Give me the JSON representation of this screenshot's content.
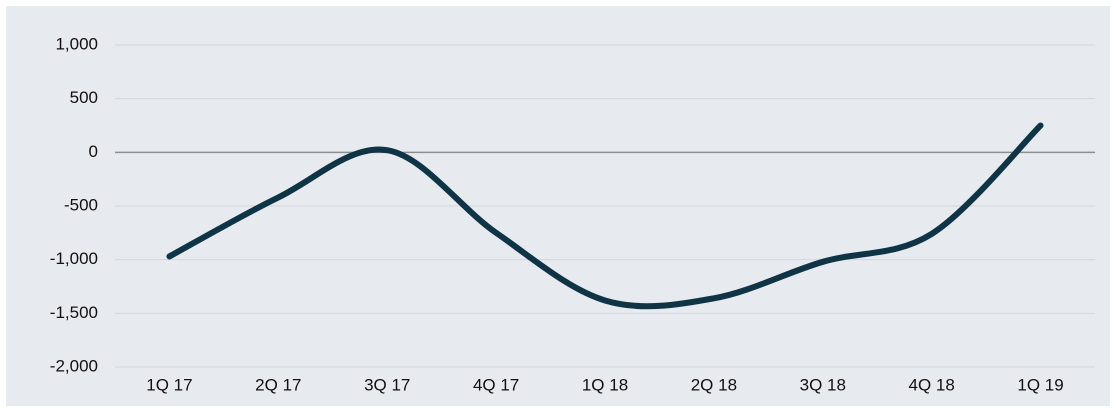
{
  "chart_data": {
    "type": "line",
    "categories": [
      "1Q 17",
      "2Q 17",
      "3Q 17",
      "4Q 17",
      "1Q 18",
      "2Q 18",
      "3Q 18",
      "4Q 18",
      "1Q 19"
    ],
    "series": [
      {
        "color": "#0e3446",
        "values": [
          -970,
          -420,
          20,
          -750,
          -1380,
          -1360,
          -1020,
          -760,
          250
        ]
      }
    ],
    "ylim": [
      -2000,
      1000
    ],
    "yticks": [
      {
        "value": -2000,
        "label": "-2,000"
      },
      {
        "value": -1500,
        "label": "-1,500"
      },
      {
        "value": -1000,
        "label": "-1,000"
      },
      -500,
      0,
      500,
      {
        "value": 1000,
        "label": "1,000"
      }
    ],
    "grid": true,
    "smooth": true
  }
}
